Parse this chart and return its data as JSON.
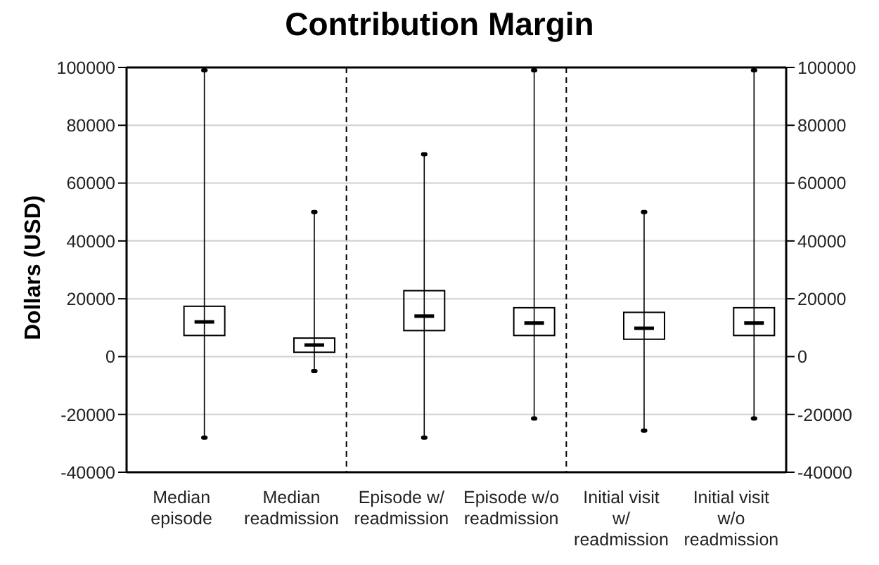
{
  "chart_data": {
    "type": "box",
    "title": "Contribution Margin",
    "ylabel": "Dollars (USD)",
    "categories": [
      "Median episode",
      "Median readmission",
      "Episode w/ readmission",
      "Episode w/o readmission",
      "Initial visit w/ readmission",
      "Initial visit w/o readmission"
    ],
    "boxes": [
      {
        "low": -28000,
        "q1": 7300,
        "median": 12000,
        "q3": 17400,
        "high": 99000
      },
      {
        "low": -5000,
        "q1": 1500,
        "median": 4000,
        "q3": 6400,
        "high": 50000
      },
      {
        "low": -28000,
        "q1": 9000,
        "median": 14000,
        "q3": 22800,
        "high": 70000
      },
      {
        "low": -21400,
        "q1": 7300,
        "median": 11600,
        "q3": 16900,
        "high": 99000
      },
      {
        "low": -25600,
        "q1": 6000,
        "median": 9800,
        "q3": 15300,
        "high": 50000
      },
      {
        "low": -21400,
        "q1": 7300,
        "median": 11600,
        "q3": 16900,
        "high": 99000
      }
    ],
    "color": "#000000",
    "ylim": [
      -40000,
      100000
    ],
    "yticks": [
      -40000,
      -20000,
      0,
      20000,
      40000,
      60000,
      80000,
      100000
    ],
    "y2lim": [
      -40000,
      100000
    ],
    "y2ticks": [
      -40000,
      -20000,
      0,
      20000,
      40000,
      60000,
      80000,
      100000
    ],
    "grid": "y",
    "legend": false
  }
}
